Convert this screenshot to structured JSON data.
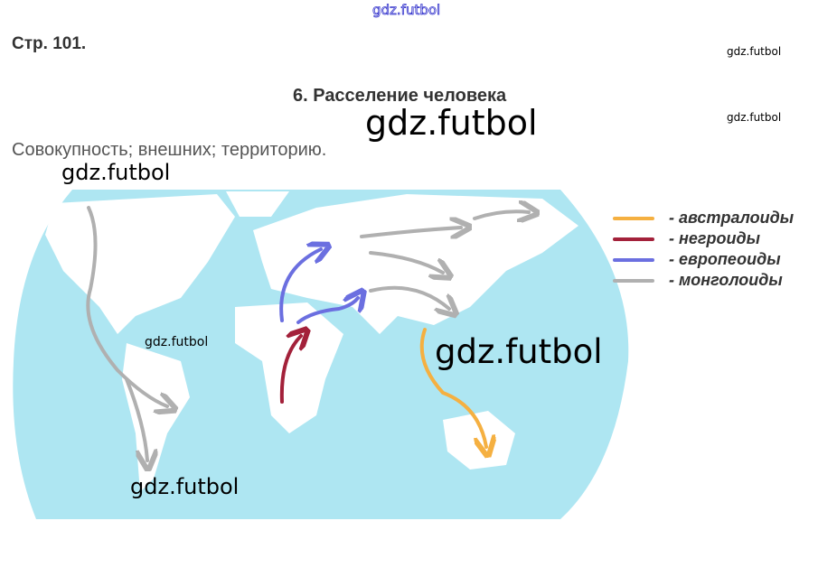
{
  "page_label": "Стр. 101.",
  "section_title": "6. Расселение человека",
  "answer_text": "Совокупность; внешних; территорию.",
  "watermarks": [
    "gdz.futbol",
    "gdz.futbol",
    "gdz.futbol",
    "gdz.futbol",
    "gdz.futbol",
    "gdz.futbol",
    "gdz.futbol",
    "gdz.futbol"
  ],
  "legend": [
    {
      "label": "- австралоиды",
      "color": "#f5b041"
    },
    {
      "label": "- негроиды",
      "color": "#a3213a"
    },
    {
      "label": "- европеоиды",
      "color": "#6b6fe0"
    },
    {
      "label": "- монголоиды",
      "color": "#b0b0b0"
    }
  ],
  "map": {
    "ocean_color": "#aee6f2",
    "land_color": "#ffffff"
  }
}
